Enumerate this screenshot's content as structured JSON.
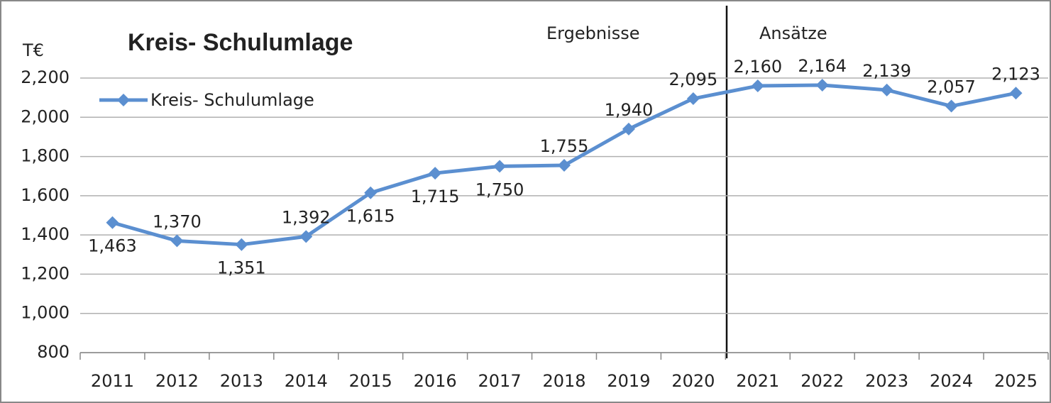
{
  "chart_data": {
    "type": "line",
    "title": "Kreis- Schulumlage",
    "y_label": "T€",
    "annotations": [
      "Ergebnisse",
      "Ansätze"
    ],
    "categories": [
      "2011",
      "2012",
      "2013",
      "2014",
      "2015",
      "2016",
      "2017",
      "2018",
      "2019",
      "2020",
      "2021",
      "2022",
      "2023",
      "2024",
      "2025"
    ],
    "series": [
      {
        "name": "Kreis- Schulumlage",
        "color": "#5b8fd0",
        "values": [
          1463,
          1370,
          1351,
          1392,
          1615,
          1715,
          1750,
          1755,
          1940,
          2095,
          2160,
          2164,
          2139,
          2057,
          2123
        ],
        "value_labels": [
          "1,463",
          "1,370",
          "1,351",
          "1,392",
          "1,615",
          "1,715",
          "1,750",
          "1,755",
          "1,940",
          "2,095",
          "2,160",
          "2,164",
          "2,139",
          "2,057",
          "2,123"
        ]
      }
    ],
    "ylim": [
      800,
      2200
    ],
    "yticks": [
      800,
      {
        "value": 1000,
        "label": "1,000"
      },
      {
        "value": 1200,
        "label": "1,200"
      },
      {
        "value": 1400,
        "label": "1,400"
      },
      {
        "value": 1600,
        "label": "1,600"
      },
      {
        "value": 1800,
        "label": "1,800"
      },
      {
        "value": 2000,
        "label": "2,000"
      },
      {
        "value": 2200,
        "label": "2,200"
      }
    ],
    "grid": true,
    "legend": "top-left"
  }
}
